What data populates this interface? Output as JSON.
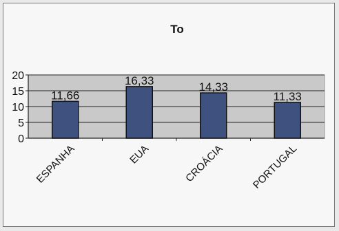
{
  "chart_data": {
    "type": "bar",
    "title": "To",
    "categories": [
      "ESPANHA",
      "EUA",
      "CROÁCIA",
      "PORTUGAL"
    ],
    "values": [
      11.66,
      16.33,
      14.33,
      11.33
    ],
    "value_labels": [
      "11,66",
      "16,33",
      "14,33",
      "11,33"
    ],
    "yticks": [
      "0",
      "5",
      "10",
      "15",
      "20"
    ],
    "ylim": [
      0,
      20
    ],
    "grid": true,
    "bar_color": "#3f527f",
    "plot_background": "#c9c9c9"
  }
}
